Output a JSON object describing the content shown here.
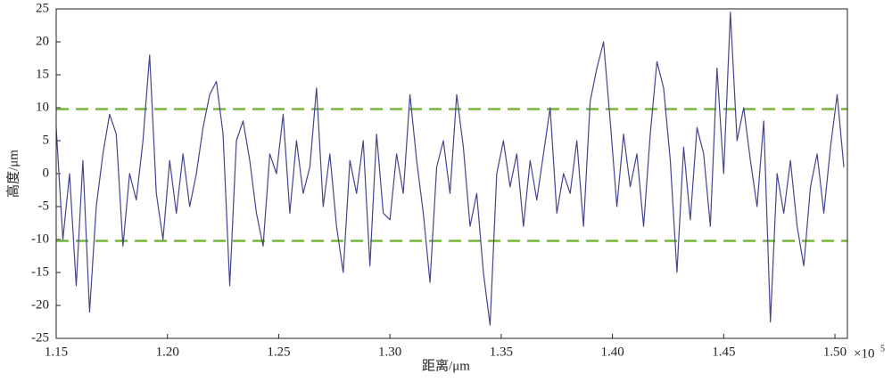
{
  "chart_data": {
    "type": "line",
    "x_label": "距离/μm",
    "y_label": "高度/μm",
    "x_multiplier": "×10",
    "x_multiplier_exp": "5",
    "xlim": [
      1.15,
      1.5056
    ],
    "ylim": [
      -25,
      25
    ],
    "xticks": [
      1.15,
      {
        "value": 1.2,
        "label": "1.20"
      },
      1.25,
      {
        "value": 1.3,
        "label": "1.30"
      },
      1.35,
      {
        "value": 1.4,
        "label": "1.40"
      },
      1.45,
      {
        "value": 1.5,
        "label": "1.50"
      }
    ],
    "yticks": [
      25,
      20,
      15,
      10,
      5,
      0,
      -5,
      -10,
      -15,
      -20,
      -25
    ],
    "x": [
      1.15,
      1.153,
      1.156,
      1.159,
      1.162,
      1.165,
      1.168,
      1.171,
      1.174,
      1.177,
      1.18,
      1.183,
      1.186,
      1.189,
      1.192,
      1.195,
      1.198,
      1.201,
      1.204,
      1.207,
      1.21,
      1.213,
      1.216,
      1.219,
      1.222,
      1.225,
      1.228,
      1.231,
      1.234,
      1.237,
      1.24,
      1.243,
      1.246,
      1.249,
      1.252,
      1.255,
      1.258,
      1.261,
      1.264,
      1.267,
      1.27,
      1.273,
      1.276,
      1.279,
      1.282,
      1.285,
      1.288,
      1.291,
      1.294,
      1.297,
      1.3,
      1.303,
      1.306,
      1.309,
      1.312,
      1.315,
      1.318,
      1.321,
      1.324,
      1.327,
      1.33,
      1.333,
      1.336,
      1.339,
      1.342,
      1.345,
      1.348,
      1.351,
      1.354,
      1.357,
      1.36,
      1.363,
      1.366,
      1.369,
      1.372,
      1.375,
      1.378,
      1.381,
      1.384,
      1.387,
      1.39,
      1.393,
      1.396,
      1.399,
      1.402,
      1.405,
      1.408,
      1.411,
      1.414,
      1.417,
      1.42,
      1.423,
      1.426,
      1.429,
      1.432,
      1.435,
      1.438,
      1.441,
      1.444,
      1.447,
      1.45,
      1.453,
      1.456,
      1.459,
      1.462,
      1.465,
      1.468,
      1.471,
      1.474,
      1.477,
      1.48,
      1.483,
      1.486,
      1.489,
      1.492,
      1.495,
      1.498,
      1.501,
      1.504
    ],
    "series": [
      {
        "color": "#45458f",
        "values": [
          7,
          -10,
          0,
          -17,
          2,
          -21,
          -5,
          3,
          9,
          6,
          -11,
          0,
          -4,
          5,
          18,
          -3,
          -10,
          2,
          -6,
          3,
          -5,
          0,
          7,
          12,
          14,
          6,
          -17,
          5,
          8,
          2,
          -6,
          -11,
          3,
          0,
          9,
          -6,
          5,
          -3,
          1,
          13,
          -5,
          3,
          -8,
          -15,
          2,
          -3,
          5,
          -14,
          6,
          -6,
          -7,
          3,
          -3,
          12,
          2,
          -6,
          -16.5,
          1,
          5,
          -3,
          12,
          4,
          -8,
          -3,
          -15,
          -23,
          0,
          5,
          -2,
          3,
          -8,
          2,
          -4,
          3,
          10,
          -6,
          0,
          -3,
          5,
          -8,
          11,
          16,
          20,
          8,
          -5,
          6,
          -2,
          3,
          -8,
          6,
          17,
          13,
          2,
          -15,
          4,
          -7,
          7,
          3,
          -8,
          16,
          0,
          24.5,
          5,
          10,
          2,
          -5,
          8,
          -22.5,
          0,
          -6,
          2,
          -8,
          -14,
          -2,
          3,
          -6,
          4,
          12,
          1
        ]
      }
    ],
    "reference_lines": [
      {
        "value": 9.8,
        "color": "#77b63a"
      },
      {
        "value": -10.2,
        "color": "#77b63a"
      }
    ]
  }
}
